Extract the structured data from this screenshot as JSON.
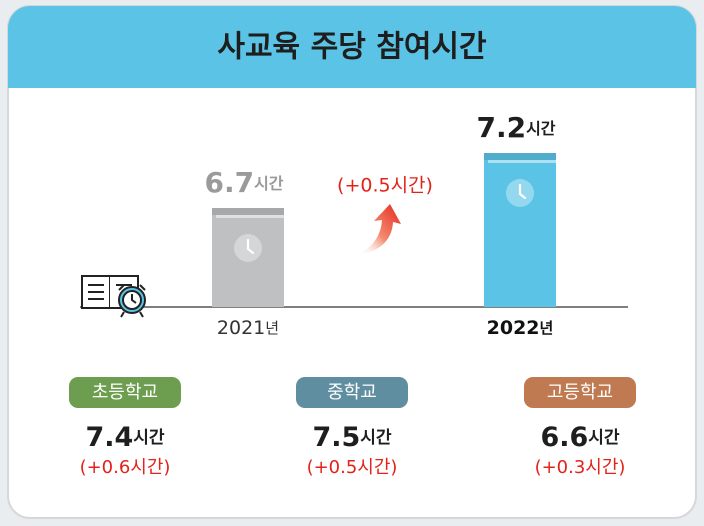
{
  "chart_data": {
    "type": "bar",
    "title": "사교육 주당 참여시간",
    "unit": "시간",
    "categories": [
      "2021",
      "2022"
    ],
    "category_unit": "년",
    "values": [
      6.7,
      7.2
    ],
    "colors": [
      "#bfc0c2",
      "#5bc4e6"
    ],
    "ylim": [
      5.8,
      7.6
    ],
    "annotation": "(+0.5시간)",
    "schools": [
      {
        "name": "초등학교",
        "value": 7.4,
        "change": "(+0.6시간)",
        "color": "#6d9e4f"
      },
      {
        "name": "중학교",
        "value": 7.5,
        "change": "(+0.5시간)",
        "color": "#5f8ea0"
      },
      {
        "name": "고등학교",
        "value": 6.6,
        "change": "(+0.3시간)",
        "color": "#c07a52"
      }
    ]
  }
}
